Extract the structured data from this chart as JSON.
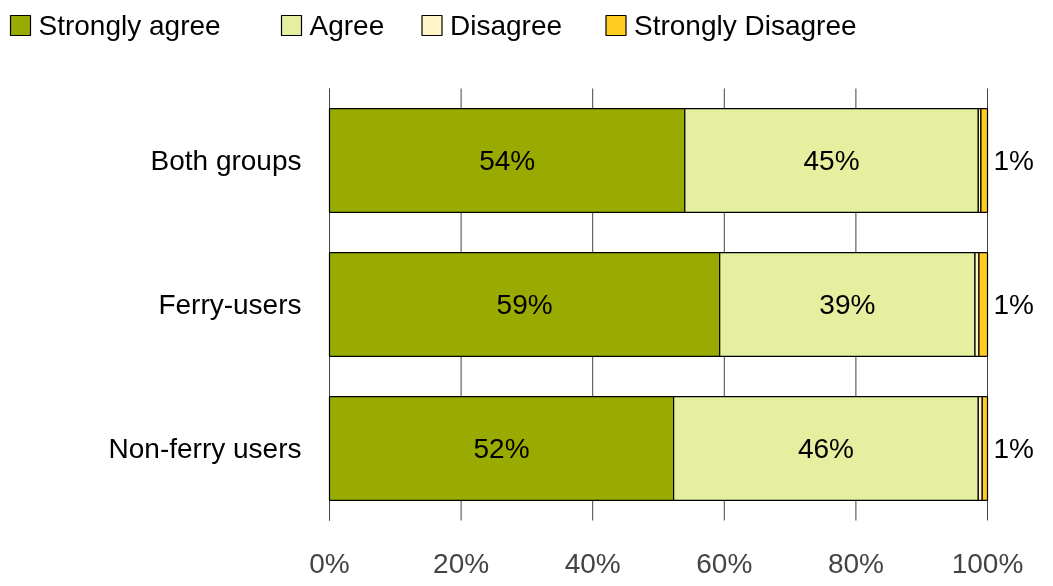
{
  "chart_data": {
    "type": "bar",
    "orientation": "horizontal",
    "stacked": true,
    "categories": [
      "Both groups",
      "Ferry-users",
      "Non-ferry users"
    ],
    "series": [
      {
        "name": "Strongly agree",
        "color": "#99ab00",
        "values": [
          54,
          59.3,
          52.3
        ],
        "value_labels": [
          "54%",
          "59%",
          "52%"
        ]
      },
      {
        "name": "Agree",
        "color": "#e5ef9f",
        "values": [
          44.6,
          38.8,
          46.3
        ],
        "value_labels": [
          "45%",
          "39%",
          "46%"
        ]
      },
      {
        "name": "Disagree",
        "color": "#fff5c8",
        "values": [
          0.4,
          0.6,
          0.6
        ]
      },
      {
        "name": "Strongly Disagree",
        "color": "#ffcc22",
        "values": [
          1.0,
          1.3,
          0.8
        ],
        "value_labels": [
          "1%",
          "1%",
          "1%"
        ]
      }
    ],
    "xlim": [
      0,
      100
    ],
    "xticks": [
      {
        "value": 0,
        "label": "0%"
      },
      {
        "value": 20,
        "label": "20%"
      },
      {
        "value": 40,
        "label": "40%"
      },
      {
        "value": 60,
        "label": "60%"
      },
      {
        "value": 80,
        "label": "80%"
      },
      {
        "value": 100,
        "label": "100%"
      }
    ],
    "grid": "x",
    "legend": "top"
  }
}
